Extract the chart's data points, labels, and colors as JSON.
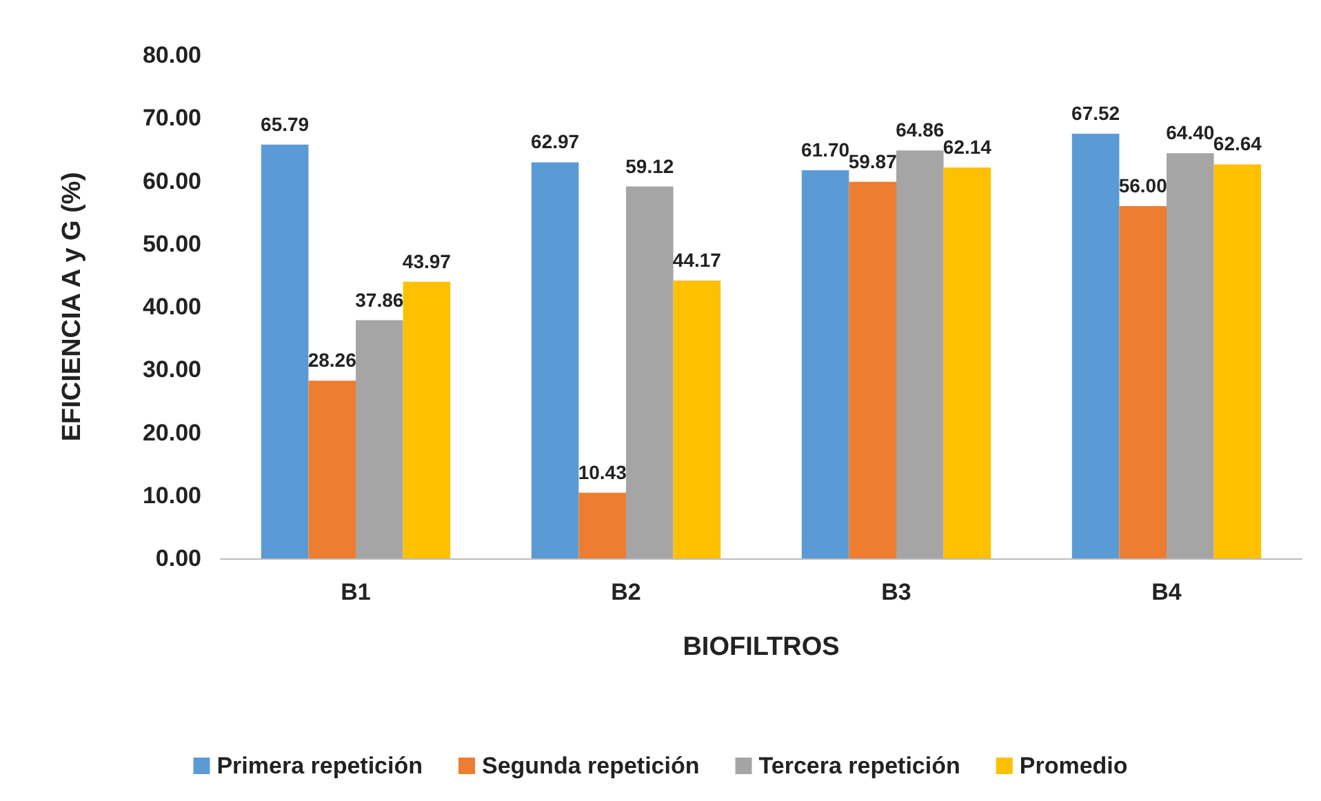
{
  "chart_data": {
    "type": "bar",
    "xlabel": "BIOFILTROS",
    "ylabel": "EFICIENCIA A y G (%)",
    "categories": [
      "B1",
      "B2",
      "B3",
      "B4"
    ],
    "series": [
      {
        "name": "Primera repetición",
        "color": "#5b9bd5",
        "values": [
          65.79,
          62.97,
          61.7,
          67.52
        ],
        "value_labels": [
          "65.79",
          "62.97",
          "61.70",
          "67.52"
        ]
      },
      {
        "name": "Segunda repetición",
        "color": "#ed7d31",
        "values": [
          28.26,
          10.43,
          59.87,
          56.0
        ],
        "value_labels": [
          "28.26",
          "10.43",
          "59.87",
          "56.00"
        ]
      },
      {
        "name": "Tercera repetición",
        "color": "#a5a5a5",
        "values": [
          37.86,
          59.12,
          64.86,
          64.4
        ],
        "value_labels": [
          "37.86",
          "59.12",
          "64.86",
          "64.40"
        ]
      },
      {
        "name": "Promedio",
        "color": "#ffc000",
        "values": [
          43.97,
          44.17,
          62.14,
          62.64
        ],
        "value_labels": [
          "43.97",
          "44.17",
          "62.14",
          "62.64"
        ]
      }
    ],
    "ylim": [
      0,
      80
    ],
    "yticks": [
      {
        "value": 0,
        "label": "0.00"
      },
      {
        "value": 10,
        "label": "10.00"
      },
      {
        "value": 20,
        "label": "20.00"
      },
      {
        "value": 30,
        "label": "30.00"
      },
      {
        "value": 40,
        "label": "40.00"
      },
      {
        "value": 50,
        "label": "50.00"
      },
      {
        "value": 60,
        "label": "60.00"
      },
      {
        "value": 70,
        "label": "70.00"
      },
      {
        "value": 80,
        "label": "80.00"
      }
    ],
    "grid": false,
    "legend": "bottom"
  }
}
